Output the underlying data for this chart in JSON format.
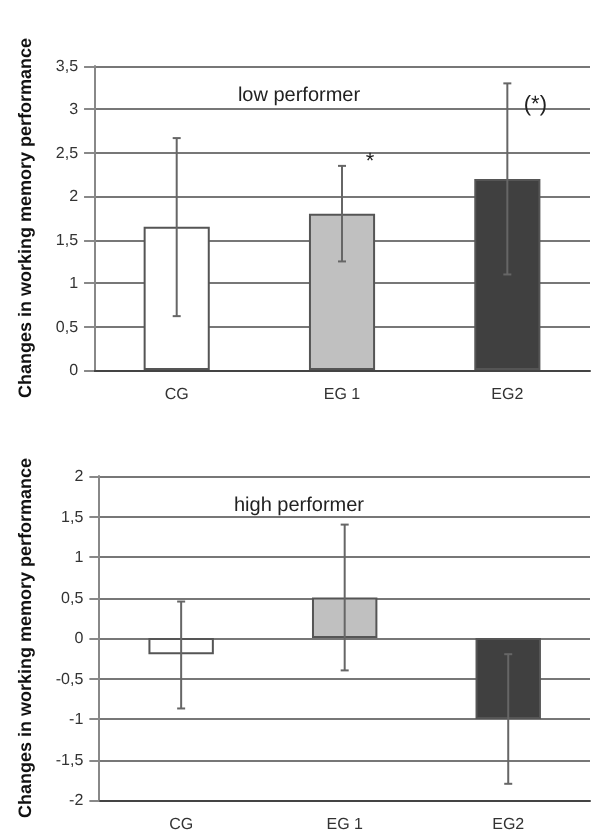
{
  "chart_data": [
    {
      "type": "bar",
      "title": "low performer",
      "ylabel": "Changes in working memory performance",
      "categories": [
        "CG",
        "EG 1",
        "EG2"
      ],
      "values": [
        1.65,
        1.8,
        2.2
      ],
      "colors": [
        "#ffffff",
        "#c0c0c0",
        "#404040"
      ],
      "errors": [
        [
          0.62,
          2.67
        ],
        [
          1.25,
          2.35
        ],
        [
          1.1,
          3.3
        ]
      ],
      "ylim": [
        0,
        3.5
      ],
      "yticks": [
        0,
        {
          "value": 0.5,
          "label": "0,5"
        },
        1,
        {
          "value": 1.5,
          "label": "1,5"
        },
        2,
        {
          "value": 2.5,
          "label": "2,5"
        },
        3,
        {
          "value": 3.5,
          "label": "3,5"
        }
      ],
      "grid": "y",
      "annotations": [
        {
          "text": "*",
          "x": "EG 1",
          "y": 2.4
        },
        {
          "text": "(*)",
          "x": "EG2",
          "y": 3.05
        }
      ]
    },
    {
      "type": "bar",
      "title": "high performer",
      "ylabel": "Changes in working memory performance",
      "categories": [
        "CG",
        "EG 1",
        "EG2"
      ],
      "values": [
        -0.2,
        0.5,
        -1.0
      ],
      "colors": [
        "#ffffff",
        "#c0c0c0",
        "#404040"
      ],
      "errors": [
        [
          -0.87,
          0.45
        ],
        [
          -0.4,
          1.4
        ],
        [
          -1.8,
          -0.2
        ]
      ],
      "ylim": [
        -2,
        2
      ],
      "yticks": [
        -2,
        {
          "value": -1.5,
          "label": "-1,5"
        },
        -1,
        {
          "value": -0.5,
          "label": "-0,5"
        },
        0,
        {
          "value": 0.5,
          "label": "0,5"
        },
        1,
        {
          "value": 1.5,
          "label": "1,5"
        },
        2
      ],
      "grid": "y"
    }
  ]
}
